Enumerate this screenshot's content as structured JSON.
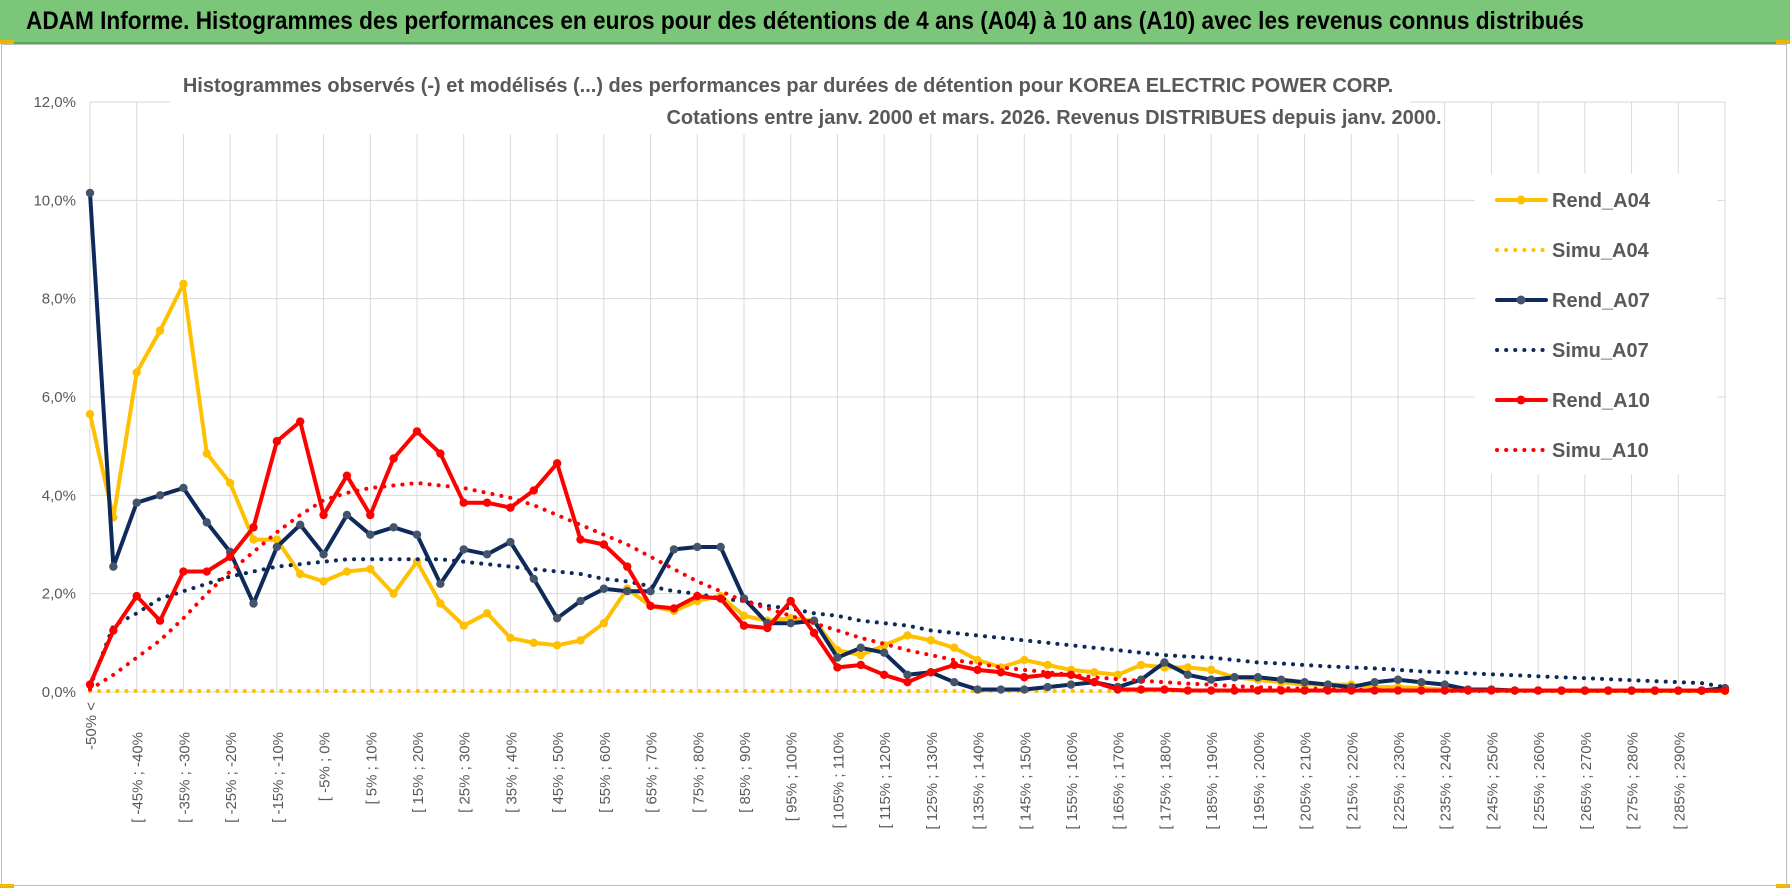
{
  "banner": {
    "title": "ADAM Informe. Histogrammes des performances en euros pour des détentions de 4 ans (A04) à 10 ans (A10) avec les revenus connus distribués"
  },
  "chart_data": {
    "type": "line",
    "title": "Histogrammes observés (-) et modélisés (...) des performances par durées de détention pour KOREA ELECTRIC POWER CORP.",
    "subtitle": "Cotations entre janv. 2000 et mars. 2026. Revenus DISTRIBUES depuis janv. 2000.",
    "ylim": [
      0,
      12
    ],
    "y_ticks": [
      "0,0%",
      "2,0%",
      "4,0%",
      "6,0%",
      "8,0%",
      "10,0%",
      "12,0%"
    ],
    "legend_position": "right",
    "colors": {
      "A04": "#ffc000",
      "A07": "#0e2a5a",
      "A10": "#ff0000"
    },
    "x_labels": [
      "-50% <",
      "[ -45% ; -40%",
      "[ -35% ; -30%",
      "[ -25% ; -20%",
      "[ -15% ; -10%",
      "[ -5% ; 0%",
      "[ 5% ; 10%",
      "[ 15% ; 20%",
      "[ 25% ; 30%",
      "[ 35% ; 40%",
      "[ 45% ; 50%",
      "[ 55% ; 60%",
      "[ 65% ; 70%",
      "[ 75% ; 80%",
      "[ 85% ; 90%",
      "[ 95% ; 100%",
      "[ 105% ; 110%",
      "[ 115% ; 120%",
      "[ 125% ; 130%",
      "[ 135% ; 140%",
      "[ 145% ; 150%",
      "[ 155% ; 160%",
      "[ 165% ; 170%",
      "[ 175% ; 180%",
      "[ 185% ; 190%",
      "[ 195% ; 200%",
      "[ 205% ; 210%",
      "[ 215% ; 220%",
      "[ 225% ; 230%",
      "[ 235% ; 240%",
      "[ 245% ; 250%",
      "[ 255% ; 260%",
      "[ 265% ; 270%",
      "[ 275% ; 280%",
      "[ 285% ; 290%"
    ],
    "series": [
      {
        "name": "Rend_A04",
        "style": "solid",
        "color": "#ffc000",
        "values": [
          5.65,
          3.55,
          6.5,
          7.35,
          8.3,
          4.85,
          4.25,
          3.1,
          3.1,
          2.4,
          2.25,
          2.45,
          2.5,
          2.0,
          2.65,
          1.8,
          1.35,
          1.6,
          1.1,
          1.0,
          0.95,
          1.05,
          1.4,
          2.1,
          1.75,
          1.65,
          1.85,
          1.95,
          1.55,
          1.45,
          1.5,
          1.45,
          0.85,
          0.75,
          0.95,
          1.15,
          1.05,
          0.9,
          0.65,
          0.5,
          0.65,
          0.55,
          0.45,
          0.4,
          0.35,
          0.55,
          0.5,
          0.5,
          0.45,
          0.3,
          0.25,
          0.2,
          0.15,
          0.15,
          0.15,
          0.1,
          0.1,
          0.08,
          0.05,
          0.05,
          0.05,
          0.03,
          0.03,
          0.02,
          0.02,
          0.02,
          0.02,
          0.02,
          0.02,
          0.02,
          0.02
        ]
      },
      {
        "name": "Simu_A04",
        "style": "dotted",
        "color": "#ffc000",
        "values": [
          0.02,
          0.02,
          0.02,
          0.02,
          0.02,
          0.02,
          0.02,
          0.02,
          0.02,
          0.02,
          0.02,
          0.02,
          0.02,
          0.02,
          0.02,
          0.02,
          0.02,
          0.02,
          0.02,
          0.02,
          0.02,
          0.02,
          0.02,
          0.02,
          0.02,
          0.02,
          0.02,
          0.02,
          0.02,
          0.02,
          0.02,
          0.02,
          0.02,
          0.02,
          0.02,
          0.02,
          0.02,
          0.02,
          0.02,
          0.02,
          0.02,
          0.02,
          0.02,
          0.02,
          0.02,
          0.02,
          0.02,
          0.02,
          0.02,
          0.02,
          0.02,
          0.02,
          0.02,
          0.02,
          0.02,
          0.02,
          0.02,
          0.02,
          0.02,
          0.02,
          0.02,
          0.02,
          0.02,
          0.02,
          0.02,
          0.02,
          0.02,
          0.02,
          0.02,
          0.02,
          0.02
        ]
      },
      {
        "name": "Rend_A07",
        "style": "solid",
        "color": "#0e2a5a",
        "values": [
          10.15,
          2.55,
          3.85,
          4.0,
          4.15,
          3.45,
          2.85,
          1.8,
          2.95,
          3.4,
          2.8,
          3.6,
          3.2,
          3.35,
          3.2,
          2.2,
          2.9,
          2.8,
          3.05,
          2.3,
          1.5,
          1.85,
          2.1,
          2.05,
          2.05,
          2.9,
          2.95,
          2.95,
          1.9,
          1.4,
          1.4,
          1.45,
          0.7,
          0.9,
          0.8,
          0.35,
          0.4,
          0.2,
          0.05,
          0.05,
          0.05,
          0.1,
          0.15,
          0.2,
          0.1,
          0.25,
          0.6,
          0.35,
          0.25,
          0.3,
          0.3,
          0.25,
          0.2,
          0.15,
          0.1,
          0.2,
          0.25,
          0.2,
          0.15,
          0.05,
          0.05,
          0.03,
          0.03,
          0.03,
          0.03,
          0.03,
          0.03,
          0.03,
          0.03,
          0.03,
          0.08
        ]
      },
      {
        "name": "Simu_A07",
        "style": "dotted",
        "color": "#0e2a5a",
        "values": [
          0.1,
          1.35,
          1.6,
          1.9,
          2.05,
          2.2,
          2.35,
          2.45,
          2.55,
          2.6,
          2.65,
          2.7,
          2.7,
          2.7,
          2.7,
          2.7,
          2.65,
          2.6,
          2.55,
          2.5,
          2.45,
          2.4,
          2.3,
          2.25,
          2.15,
          2.05,
          2.0,
          1.9,
          1.85,
          1.75,
          1.7,
          1.6,
          1.55,
          1.45,
          1.4,
          1.35,
          1.25,
          1.2,
          1.15,
          1.1,
          1.05,
          1.0,
          0.95,
          0.9,
          0.85,
          0.8,
          0.75,
          0.72,
          0.7,
          0.65,
          0.6,
          0.58,
          0.55,
          0.52,
          0.5,
          0.48,
          0.45,
          0.42,
          0.4,
          0.38,
          0.36,
          0.34,
          0.32,
          0.3,
          0.28,
          0.26,
          0.24,
          0.22,
          0.2,
          0.18,
          0.1
        ]
      },
      {
        "name": "Rend_A10",
        "style": "solid",
        "color": "#ff0000",
        "values": [
          0.15,
          1.25,
          1.95,
          1.45,
          2.45,
          2.45,
          2.75,
          3.35,
          5.1,
          5.5,
          3.6,
          4.4,
          3.6,
          4.75,
          5.3,
          4.85,
          3.85,
          3.85,
          3.75,
          4.1,
          4.65,
          3.1,
          3.0,
          2.55,
          1.75,
          1.7,
          1.95,
          1.9,
          1.35,
          1.3,
          1.85,
          1.2,
          0.5,
          0.55,
          0.35,
          0.2,
          0.4,
          0.55,
          0.45,
          0.4,
          0.3,
          0.35,
          0.35,
          0.2,
          0.05,
          0.05,
          0.05,
          0.03,
          0.03,
          0.03,
          0.03,
          0.03,
          0.03,
          0.03,
          0.03,
          0.03,
          0.03,
          0.03,
          0.03,
          0.03,
          0.03,
          0.03,
          0.03,
          0.03,
          0.03,
          0.03,
          0.03,
          0.03,
          0.03,
          0.03,
          0.03
        ]
      },
      {
        "name": "Simu_A10",
        "style": "dotted",
        "color": "#ff0000",
        "values": [
          0.05,
          0.35,
          0.7,
          1.05,
          1.5,
          2.0,
          2.45,
          2.85,
          3.25,
          3.6,
          3.9,
          4.05,
          4.15,
          4.2,
          4.25,
          4.2,
          4.15,
          4.05,
          3.95,
          3.8,
          3.6,
          3.4,
          3.2,
          3.0,
          2.75,
          2.5,
          2.25,
          2.05,
          1.85,
          1.7,
          1.55,
          1.4,
          1.25,
          1.1,
          0.98,
          0.85,
          0.75,
          0.65,
          0.58,
          0.5,
          0.45,
          0.4,
          0.35,
          0.3,
          0.26,
          0.23,
          0.2,
          0.17,
          0.15,
          0.12,
          0.1,
          0.08,
          0.07,
          0.06,
          0.05,
          0.04,
          0.03,
          0.03,
          0.02,
          0.02,
          0.02,
          0.02,
          0.02,
          0.02,
          0.02,
          0.02,
          0.02,
          0.02,
          0.02,
          0.02,
          0.02
        ]
      }
    ]
  }
}
